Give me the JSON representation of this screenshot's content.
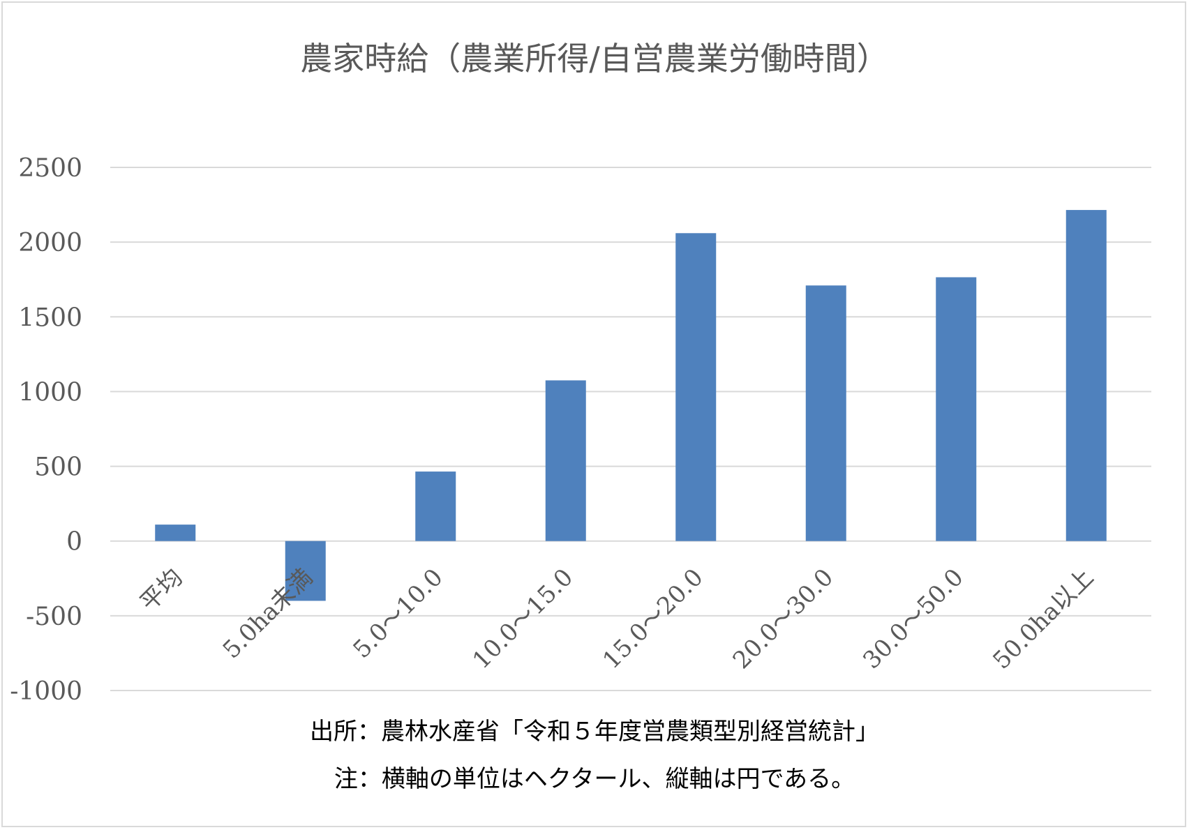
{
  "chart_data": {
    "type": "bar",
    "title": "農家時給（農業所得/自営農業労働時間）",
    "categories": [
      "平均",
      "5.0ha未満",
      "5.0～10.0",
      "10.0～15.0",
      "15.0～20.0",
      "20.0～30.0",
      "30.0～50.0",
      "50.0ha以上"
    ],
    "values": [
      110,
      -400,
      465,
      1075,
      2060,
      1710,
      1765,
      2215
    ],
    "ylim": [
      -1000,
      2500
    ],
    "yticks": [
      2500,
      2000,
      1500,
      1000,
      500,
      0,
      -500,
      -1000
    ],
    "grid": true,
    "legend": "none",
    "bar_color": "#4f81bd",
    "xlabel": "",
    "ylabel": ""
  },
  "notes": {
    "source": "出所：農林水産省「令和５年度営農類型別経営統計」",
    "note": "注：横軸の単位はヘクタール、縦軸は円である。"
  }
}
